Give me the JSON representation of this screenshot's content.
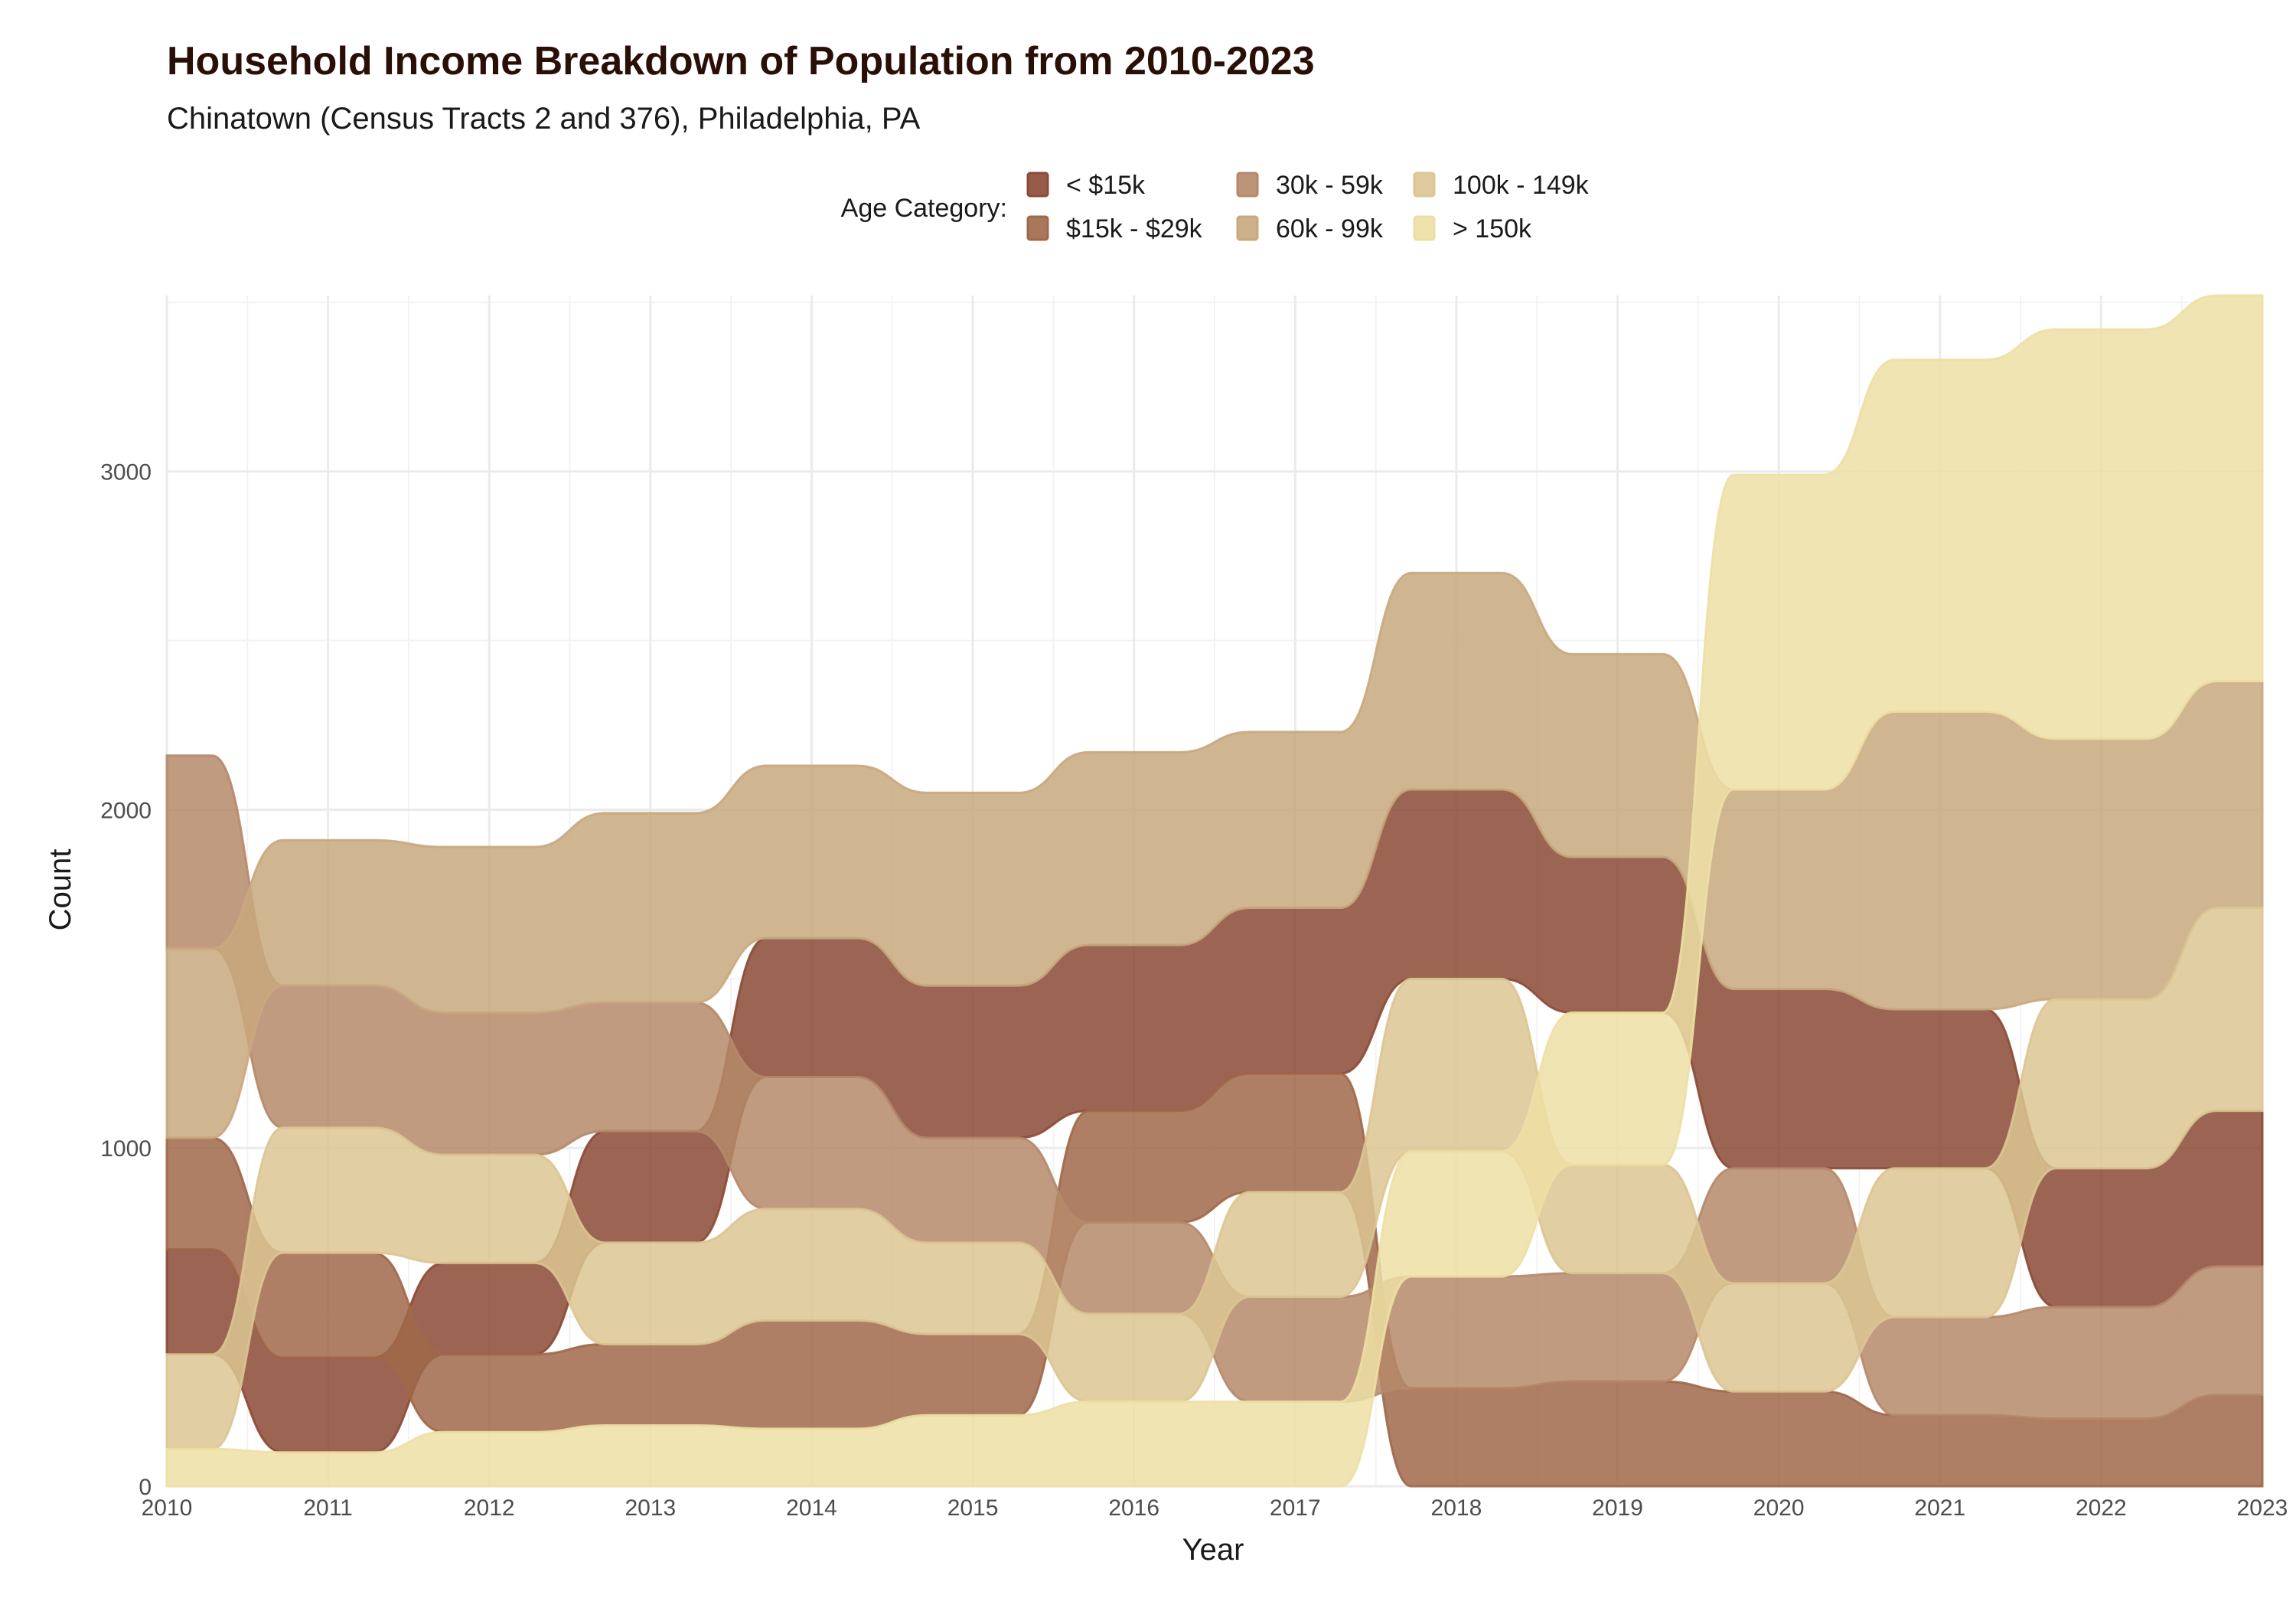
{
  "chart_data": {
    "type": "area",
    "subtype": "bump-area",
    "title": "Household Income Breakdown of Population from 2010-2023",
    "subtitle": "Chinatown (Census Tracts 2 and 376), Philadelphia, PA",
    "xlabel": "Year",
    "ylabel": "Count",
    "legend_title": "Age Category:",
    "legend_position": "top",
    "grid": true,
    "x": [
      2010,
      2011,
      2012,
      2013,
      2014,
      2015,
      2016,
      2017,
      2018,
      2019,
      2020,
      2021,
      2022,
      2023
    ],
    "xlim": [
      2010,
      2023
    ],
    "ylim": [
      0,
      3520
    ],
    "y_ticks": [
      0,
      1000,
      2000,
      3000
    ],
    "series": [
      {
        "name": "< $15k",
        "color": "#8B4A35",
        "values": [
          310,
          280,
          270,
          330,
          410,
          450,
          490,
          490,
          560,
          460,
          530,
          470,
          410,
          460
        ]
      },
      {
        "name": "$15k - $29k",
        "color": "#A0684A",
        "values": [
          330,
          310,
          230,
          240,
          320,
          240,
          330,
          350,
          290,
          310,
          280,
          210,
          200,
          270
        ]
      },
      {
        "name": "30k - 59k",
        "color": "#B5896A",
        "values": [
          570,
          420,
          420,
          380,
          390,
          310,
          270,
          310,
          330,
          320,
          340,
          290,
          330,
          380
        ]
      },
      {
        "name": "60k - 99k",
        "color": "#C8A87E",
        "values": [
          560,
          430,
          490,
          560,
          510,
          570,
          570,
          520,
          640,
          600,
          590,
          880,
          770,
          670
        ]
      },
      {
        "name": "100k - 149k",
        "color": "#DCC592",
        "values": [
          280,
          370,
          320,
          300,
          330,
          270,
          260,
          310,
          510,
          320,
          320,
          440,
          500,
          600
        ]
      },
      {
        "name": "> 150k",
        "color": "#EDDFA4",
        "values": [
          110,
          100,
          160,
          180,
          170,
          210,
          250,
          250,
          370,
          450,
          930,
          1040,
          1210,
          1140
        ]
      }
    ]
  }
}
